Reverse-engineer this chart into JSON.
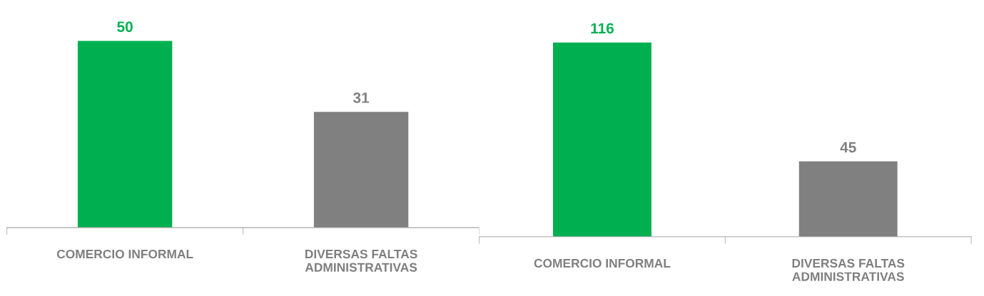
{
  "chart_data": [
    {
      "type": "bar",
      "categories": [
        "COMERCIO INFORMAL",
        "DIVERSAS FALTAS\nADMINISTRATIVAS"
      ],
      "values": [
        50,
        31
      ],
      "colors": [
        "#00b050",
        "#808080"
      ],
      "data_labels": true
    },
    {
      "type": "bar",
      "categories": [
        "COMERCIO INFORMAL",
        "DIVERSAS FALTAS\nADMINISTRATIVAS"
      ],
      "values": [
        116,
        45
      ],
      "colors": [
        "#00b050",
        "#808080"
      ],
      "data_labels": true
    }
  ]
}
